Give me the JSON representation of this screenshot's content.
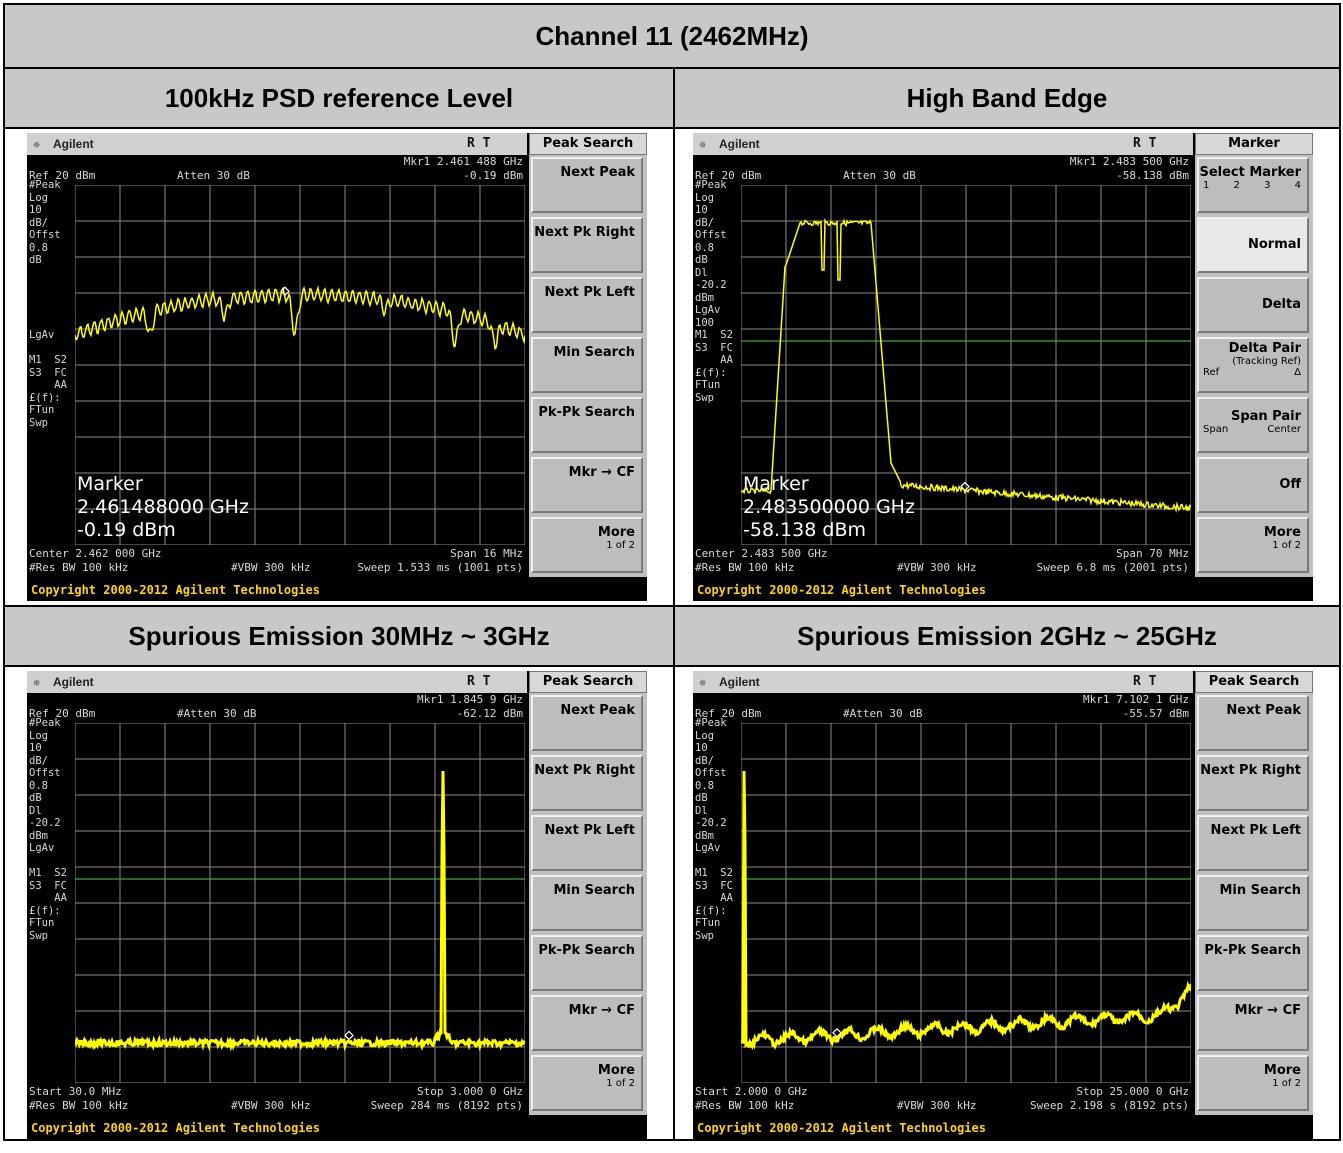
{
  "report": {
    "title": "Channel 11 (2462MHz)",
    "plots": [
      {
        "caption": "100kHz PSD reference Level",
        "screen": {
          "brand": "Agilent",
          "rt": "R  T",
          "menu_title": "Peak Search",
          "softkeys": [
            "Next Peak",
            "Next Pk Right",
            "Next Pk Left",
            "Min Search",
            "Pk-Pk Search",
            "Mkr → CF",
            "More"
          ],
          "more_sub": "1 of 2",
          "marker_line": "Mkr1  2.461 488 GHz",
          "marker_value": "-0.19 dBm",
          "ref": "Ref 20 dBm",
          "atten": "Atten 30 dB",
          "left_text": "#Peak\nLog\n10\ndB/\nOffst\n0.8\ndB\n\n\n\n\n\nLgAv\n\nM1  S2\nS3  FC\n    AA\n£(f):\nFTun\nSwp",
          "marker_box": [
            "Marker",
            "2.461488000 GHz",
            "-0.19 dBm"
          ],
          "bottom_left": "Center 2.462 000 GHz",
          "bottom_right": "Span 16 MHz",
          "rbw": "#Res BW 100 kHz",
          "vbw": "#VBW 300 kHz",
          "sweep": "Sweep 1.533 ms (1001 pts)",
          "copyright": "Copyright 2000-2012 Agilent Technologies"
        }
      },
      {
        "caption": "High Band Edge",
        "screen": {
          "brand": "Agilent",
          "rt": "R  T",
          "menu_title": "Marker",
          "marker_menu": {
            "select": "Select Marker",
            "select_nums": [
              "1",
              "2",
              "3",
              "4"
            ],
            "normal": "Normal",
            "delta": "Delta",
            "delta_pair": "Delta Pair",
            "tracking": "(Tracking Ref)",
            "ref": "Ref",
            "delta_sym": "Δ",
            "span_pair": "Span Pair",
            "span": "Span",
            "center": "Center",
            "off": "Off",
            "more": "More"
          },
          "more_sub": "1 of 2",
          "marker_line": "Mkr1  2.483 500 GHz",
          "marker_value": "-58.138 dBm",
          "ref": "Ref 20 dBm",
          "atten": "Atten 30 dB",
          "left_text": "#Peak\nLog\n10\ndB/\nOffst\n0.8\ndB\nDl\n-20.2\ndBm\nLgAv\n100\nM1  S2\nS3  FC\n    AA\n£(f):\nFTun\nSwp",
          "marker_box": [
            "Marker",
            "2.483500000 GHz",
            "-58.138 dBm"
          ],
          "bottom_left": "Center 2.483 500 GHz",
          "bottom_right": "Span 70 MHz",
          "rbw": "#Res BW 100 kHz",
          "vbw": "#VBW 300 kHz",
          "sweep": "Sweep 6.8 ms (2001 pts)",
          "copyright": "Copyright 2000-2012 Agilent Technologies"
        }
      },
      {
        "caption": "Spurious Emission 30MHz ~ 3GHz",
        "screen": {
          "brand": "Agilent",
          "rt": "R  T",
          "menu_title": "Peak Search",
          "softkeys": [
            "Next Peak",
            "Next Pk Right",
            "Next Pk Left",
            "Min Search",
            "Pk-Pk Search",
            "Mkr → CF",
            "More"
          ],
          "more_sub": "1 of 2",
          "marker_line": "Mkr1  1.845 9 GHz",
          "marker_value": "-62.12 dBm",
          "ref": "Ref 20 dBm",
          "atten": "#Atten 30 dB",
          "left_text": "#Peak\nLog\n10\ndB/\nOffst\n0.8\ndB\nDl\n-20.2\ndBm\nLgAv\n\nM1  S2\nS3  FC\n    AA\n£(f):\nFTun\nSwp",
          "bottom_left": "Start 30.0 MHz",
          "bottom_right": "Stop 3.000 0 GHz",
          "rbw": "#Res BW 100 kHz",
          "vbw": "#VBW 300 kHz",
          "sweep": "Sweep 284 ms (8192 pts)",
          "copyright": "Copyright 2000-2012 Agilent Technologies"
        }
      },
      {
        "caption": "Spurious Emission 2GHz ~ 25GHz",
        "screen": {
          "brand": "Agilent",
          "rt": "R  T",
          "menu_title": "Peak Search",
          "softkeys": [
            "Next Peak",
            "Next Pk Right",
            "Next Pk Left",
            "Min Search",
            "Pk-Pk Search",
            "Mkr → CF",
            "More"
          ],
          "more_sub": "1 of 2",
          "marker_line": "Mkr1  7.102 1 GHz",
          "marker_value": "-55.57 dBm",
          "ref": "Ref 20 dBm",
          "atten": "#Atten 30 dB",
          "left_text": "#Peak\nLog\n10\ndB/\nOffst\n0.8\ndB\nDl\n-20.2\ndBm\nLgAv\n\nM1  S2\nS3  FC\n    AA\n£(f):\nFTun\nSwp",
          "bottom_left": "Start 2.000 0 GHz",
          "bottom_right": "Stop 25.000 0 GHz",
          "rbw": "#Res BW 100 kHz",
          "vbw": "#VBW 300 kHz",
          "sweep": "Sweep 2.198 s (8192 pts)",
          "copyright": "Copyright 2000-2012 Agilent Technologies"
        }
      }
    ]
  },
  "colors": {
    "trace": "#ffff00",
    "grid": "#8a8a8a",
    "display_line": "#3faa3f",
    "header_bg": "#c8c8c8"
  }
}
